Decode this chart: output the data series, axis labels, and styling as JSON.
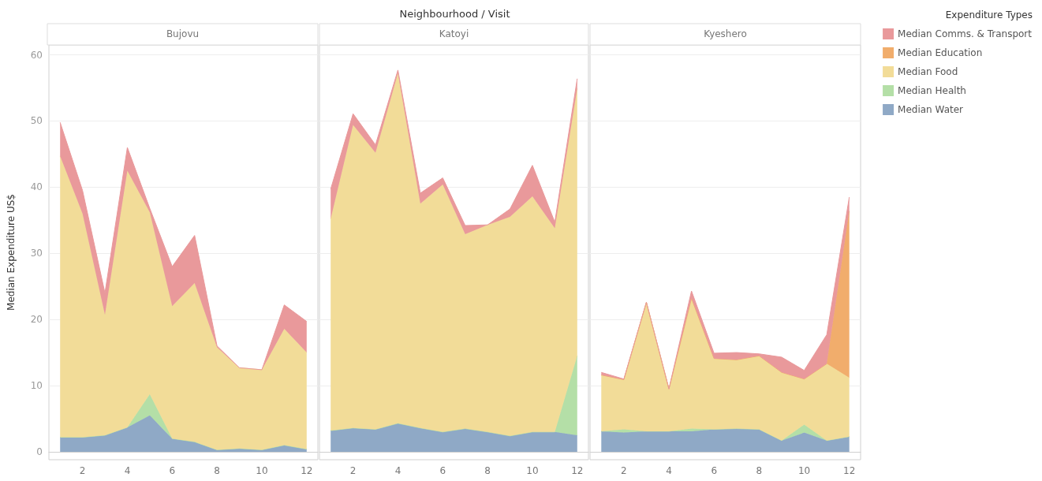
{
  "chart_data": [
    {
      "type": "area",
      "title": "Bujovu",
      "ylabel": "Median Expenditure US$",
      "annotations": [
        "Neighbourhood / Visit"
      ],
      "stacked": true,
      "grid": "y",
      "legend": false,
      "x": [
        1,
        2,
        3,
        4,
        5,
        6,
        7,
        8,
        9,
        10,
        11,
        12
      ],
      "xlim": [
        0.5,
        12.5
      ],
      "xticks": [
        2,
        4,
        6,
        8,
        10,
        12
      ],
      "ylim": [
        -1.2,
        61.5
      ],
      "yticks": [
        0,
        10,
        20,
        30,
        40,
        50,
        60
      ],
      "series": [
        {
          "color": "#8fa9c6",
          "values": [
            2.2,
            2.2,
            2.5,
            3.7,
            5.5,
            2.0,
            1.5,
            0.3,
            0.5,
            0.3,
            1.0,
            0.4
          ]
        },
        {
          "color": "#b4dfa7",
          "values": [
            0,
            0,
            0,
            0,
            3.2,
            0,
            0,
            0,
            0,
            0,
            0,
            0
          ]
        },
        {
          "color": "#f2dc98",
          "values": [
            42.5,
            33.8,
            18.2,
            38.8,
            27.5,
            20.0,
            24.0,
            15.5,
            12.2,
            12.1,
            17.6,
            14.6
          ]
        },
        {
          "color": "#e9999b",
          "values": [
            5.1,
            3.5,
            3.3,
            3.5,
            0.6,
            6.0,
            7.2,
            0.2,
            0,
            0,
            3.6,
            4.7
          ]
        }
      ]
    },
    {
      "type": "area",
      "title": "Katoyi",
      "stacked": true,
      "grid": "y",
      "legend": false,
      "tick_labels": "x",
      "x": [
        1,
        2,
        3,
        4,
        5,
        6,
        7,
        8,
        9,
        10,
        11,
        12
      ],
      "xlim": [
        0.5,
        12.5
      ],
      "xticks": [
        2,
        4,
        6,
        8,
        10,
        12
      ],
      "ylim": [
        -1.2,
        61.5
      ],
      "yticks": [
        0,
        10,
        20,
        30,
        40,
        50,
        60
      ],
      "series": [
        {
          "color": "#8fa9c6",
          "values": [
            3.2,
            3.6,
            3.4,
            4.3,
            3.6,
            3.0,
            3.5,
            3.0,
            2.4,
            3.0,
            3.0,
            2.5
          ]
        },
        {
          "color": "#b4dfa7",
          "values": [
            0,
            0,
            0,
            0,
            0,
            0,
            0,
            0,
            0,
            0,
            0,
            12.0
          ]
        },
        {
          "color": "#f2dc98",
          "values": [
            32.0,
            45.8,
            41.8,
            52.9,
            33.9,
            37.4,
            29.4,
            31.3,
            33.1,
            35.6,
            30.8,
            40.4
          ]
        },
        {
          "color": "#e9999b",
          "values": [
            4.5,
            1.7,
            1.2,
            0.5,
            1.6,
            1.0,
            1.3,
            0,
            1.2,
            4.7,
            0.9,
            1.5
          ]
        }
      ]
    },
    {
      "type": "area",
      "title": "Kyeshero",
      "legend_title": "Expenditure Types",
      "stacked": true,
      "grid": "y",
      "legend": "right",
      "tick_labels": "x",
      "x": [
        1,
        2,
        3,
        4,
        5,
        6,
        7,
        8,
        9,
        10,
        11,
        12
      ],
      "xlim": [
        0.5,
        12.5
      ],
      "xticks": [
        2,
        4,
        6,
        8,
        10,
        12
      ],
      "ylim": [
        -1.2,
        61.5
      ],
      "yticks": [
        0,
        10,
        20,
        30,
        40,
        50,
        60
      ],
      "series": [
        {
          "name": "Median Water",
          "color": "#8fa9c6",
          "values": [
            3.1,
            2.9,
            3.1,
            3.1,
            3.1,
            3.4,
            3.5,
            3.4,
            1.7,
            2.9,
            1.7,
            2.3
          ]
        },
        {
          "name": "Median Health",
          "color": "#b4dfa7",
          "values": [
            0,
            0.5,
            0,
            0,
            0.4,
            0,
            0,
            0,
            0,
            1.2,
            0,
            0
          ]
        },
        {
          "name": "Median Food",
          "color": "#f2dc98",
          "values": [
            8.5,
            7.5,
            19.5,
            6.4,
            19.7,
            10.7,
            10.4,
            11.1,
            10.3,
            6.9,
            11.6,
            8.9
          ]
        },
        {
          "name": "Median Education",
          "color": "#f1ad6c",
          "values": [
            0,
            0,
            0,
            0,
            0,
            0,
            0,
            0,
            0,
            0,
            0,
            25.2
          ]
        },
        {
          "name": "Median Comms. & Transport",
          "color": "#e9999b",
          "values": [
            0.4,
            0.1,
            0,
            0,
            1.1,
            0.8,
            1.1,
            0.3,
            2.3,
            1.3,
            4.4,
            2.1
          ]
        }
      ]
    }
  ]
}
